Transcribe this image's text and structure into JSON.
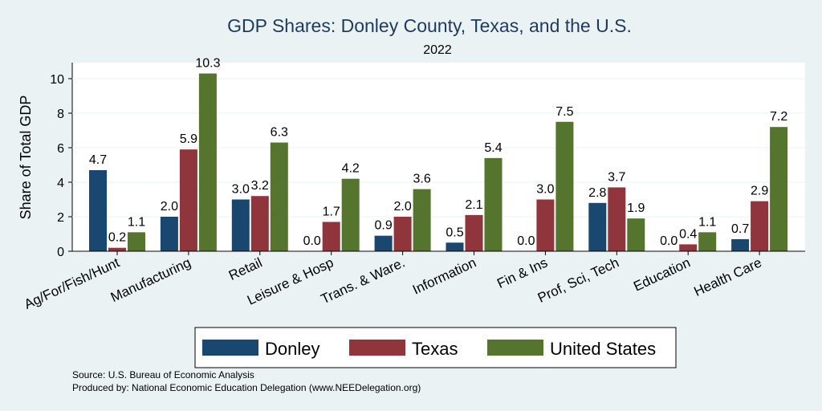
{
  "chart_data": {
    "type": "bar",
    "title": "GDP Shares: Donley County, Texas, and the U.S.",
    "subtitle": "2022",
    "xlabel": "",
    "ylabel": "Share of Total GDP",
    "ylim": [
      0,
      11
    ],
    "yticks": [
      "0",
      "2",
      "4",
      "6",
      "8",
      "10"
    ],
    "grid": true,
    "legend_position": "bottom",
    "categories": [
      "Ag/For/Fish/Hunt",
      "Manufacturing",
      "Retail",
      "Leisure & Hosp",
      "Trans. & Ware.",
      "Information",
      "Fin & Ins",
      "Prof, Sci, Tech",
      "Education",
      "Health Care"
    ],
    "series": [
      {
        "name": "Donley",
        "color": "#1a476f",
        "values": [
          4.7,
          2.0,
          3.0,
          0.0,
          0.9,
          0.5,
          0.0,
          2.8,
          0.0,
          0.7
        ],
        "labels": [
          "4.7",
          "2.0",
          "3.0",
          "0.0",
          "0.9",
          "0.5",
          "0.0",
          "2.8",
          "0.0",
          "0.7"
        ]
      },
      {
        "name": "Texas",
        "color": "#90353b",
        "values": [
          0.2,
          5.9,
          3.2,
          1.7,
          2.0,
          2.1,
          3.0,
          3.7,
          0.4,
          2.9
        ],
        "labels": [
          "0.2",
          "5.9",
          "3.2",
          "1.7",
          "2.0",
          "2.1",
          "3.0",
          "3.7",
          "0.4",
          "2.9"
        ]
      },
      {
        "name": "United States",
        "color": "#55752f",
        "values": [
          1.1,
          10.3,
          6.3,
          4.2,
          3.6,
          5.4,
          7.5,
          1.9,
          1.1,
          7.2
        ],
        "labels": [
          "1.1",
          "10.3",
          "6.3",
          "4.2",
          "3.6",
          "5.4",
          "7.5",
          "1.9",
          "1.1",
          "7.2"
        ]
      }
    ]
  },
  "notes": {
    "source": "Source: U.S. Bureau of Economic Analysis",
    "produced": "Produced by: National Economic Education Delegation (www.NEEDelegation.org)"
  }
}
